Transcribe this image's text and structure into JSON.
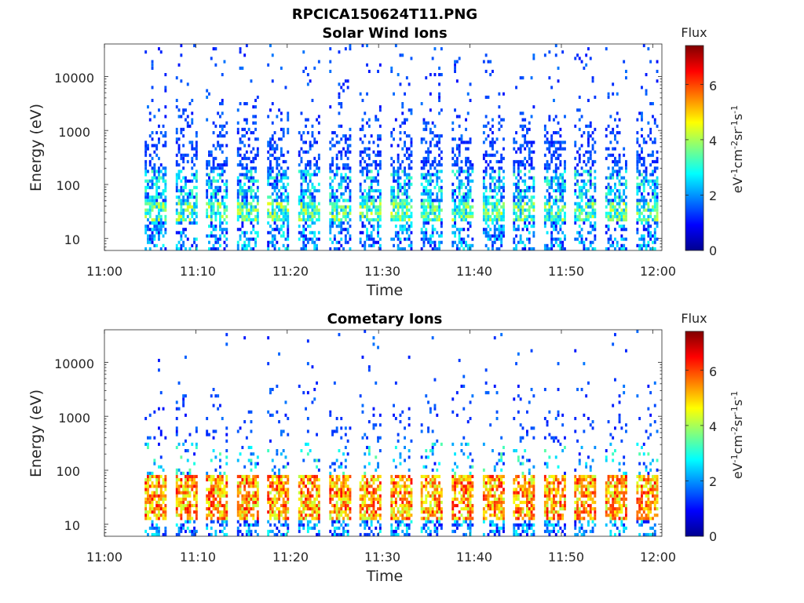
{
  "figure_title": "RPCICA150624T11.PNG",
  "chart_data": [
    {
      "type": "heatmap",
      "title": "Solar Wind Ions",
      "xlabel": "Time",
      "ylabel": "Energy (eV)",
      "x_ticks": [
        "11:00",
        "11:10",
        "11:20",
        "11:30",
        "11:40",
        "11:50",
        "12:00"
      ],
      "x_range_minutes": [
        0,
        61
      ],
      "y_scale": "log",
      "y_ticks": [
        "10",
        "100",
        "1000",
        "10000"
      ],
      "y_range": [
        6,
        40000
      ],
      "colorbar": {
        "title": "Flux",
        "label": "eV-1cm-2sr-1s-1",
        "ticks": [
          "0",
          "2",
          "4",
          "6"
        ],
        "range": [
          0,
          7.4
        ],
        "colormap": "jet"
      },
      "scan_start_minutes": [
        4.4,
        7.8,
        11.1,
        14.5,
        17.8,
        21.2,
        24.6,
        27.9,
        31.3,
        34.6,
        38.0,
        41.4,
        44.7,
        48.1,
        51.4,
        54.8,
        58.2
      ],
      "peak_band": {
        "energy_eV": [
          20,
          45
        ],
        "peak_flux": 4.5
      },
      "background_flux": 1.0
    },
    {
      "type": "heatmap",
      "title": "Cometary Ions",
      "xlabel": "Time",
      "ylabel": "Energy (eV)",
      "x_ticks": [
        "11:00",
        "11:10",
        "11:20",
        "11:30",
        "11:40",
        "11:50",
        "12:00"
      ],
      "x_range_minutes": [
        0,
        61
      ],
      "y_scale": "log",
      "y_ticks": [
        "10",
        "100",
        "1000",
        "10000"
      ],
      "y_range": [
        6,
        40000
      ],
      "colorbar": {
        "title": "Flux",
        "label": "eV-1cm-2sr-1s-1",
        "ticks": [
          "0",
          "2",
          "4",
          "6"
        ],
        "range": [
          0,
          7.4
        ],
        "colormap": "jet"
      },
      "scan_start_minutes": [
        4.4,
        7.8,
        11.1,
        14.5,
        17.8,
        21.2,
        24.6,
        27.9,
        31.3,
        34.6,
        38.0,
        41.4,
        44.7,
        48.1,
        51.4,
        54.8,
        58.2
      ],
      "peak_band": {
        "energy_eV": [
          12,
          80
        ],
        "peak_flux": 6.5
      },
      "background_flux": 1.0
    }
  ]
}
